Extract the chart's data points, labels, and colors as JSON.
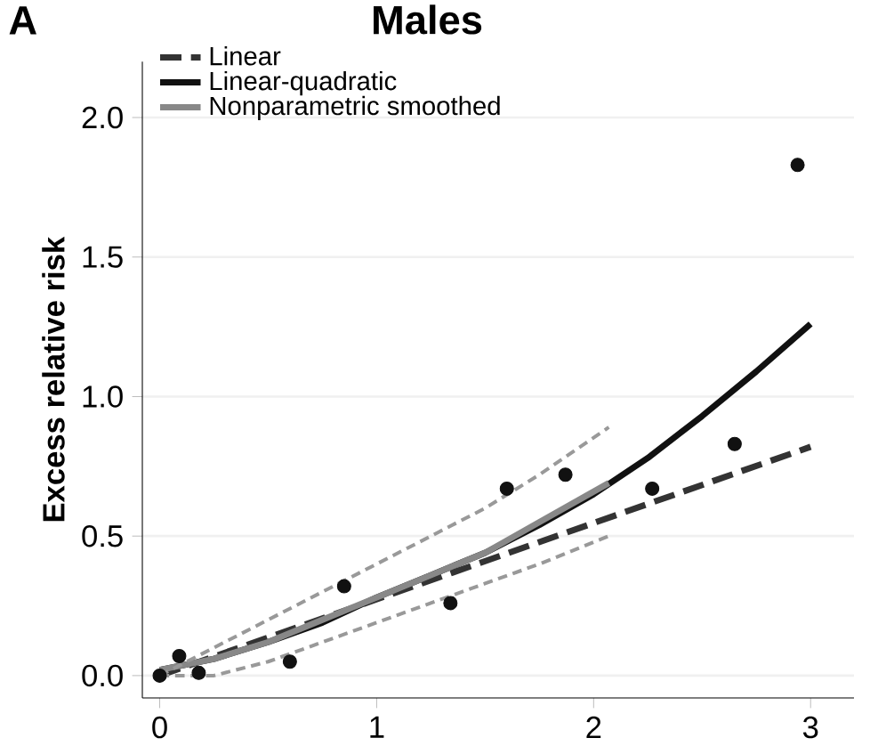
{
  "chart_data": {
    "type": "line",
    "title": "Males",
    "ylabel": "Excess relative risk",
    "annotations": [
      "A"
    ],
    "xlim": [
      -0.08,
      3.2
    ],
    "ylim": [
      -0.08,
      2.2
    ],
    "xticks": [
      0,
      1,
      2,
      3
    ],
    "yticks": [
      {
        "value": 0,
        "label": "0.0"
      },
      {
        "value": 0.5,
        "label": "0.5"
      },
      {
        "value": 1,
        "label": "1.0"
      },
      {
        "value": 1.5,
        "label": "1.5"
      },
      {
        "value": 2,
        "label": "2.0"
      }
    ],
    "grid": "y",
    "legend": "top left",
    "series": [
      {
        "name": "Linear",
        "color": "#333333",
        "line_style": "dashed",
        "x": [
          0,
          3
        ],
        "values": [
          0,
          0.82
        ]
      },
      {
        "name": "Linear-quadratic",
        "color": "#111111",
        "line_style": "solid",
        "x": [
          0,
          0.25,
          0.5,
          0.75,
          1,
          1.25,
          1.5,
          1.75,
          2,
          2.25,
          2.5,
          2.75,
          3
        ],
        "values": [
          0.02,
          0.06,
          0.12,
          0.19,
          0.28,
          0.36,
          0.44,
          0.54,
          0.65,
          0.78,
          0.93,
          1.09,
          1.26
        ]
      },
      {
        "name": "Nonparametric smoothed",
        "color": "#888888",
        "line_style": "solid",
        "x": [
          0,
          0.25,
          0.5,
          0.75,
          1,
          1.25,
          1.5,
          1.75,
          2.07
        ],
        "values": [
          0.02,
          0.06,
          0.12,
          0.2,
          0.28,
          0.36,
          0.44,
          0.55,
          0.69
        ]
      },
      {
        "color": "#999999",
        "line_style": "dashed",
        "x": [
          0,
          0.25,
          0.5,
          0.75,
          1,
          1.25,
          1.5,
          1.75,
          2.07
        ],
        "values": [
          0,
          0.1,
          0.2,
          0.3,
          0.4,
          0.5,
          0.6,
          0.72,
          0.89
        ]
      },
      {
        "color": "#999999",
        "line_style": "dashed",
        "x": [
          0,
          0.25,
          0.5,
          0.75,
          1,
          1.25,
          1.5,
          1.75,
          2.07
        ],
        "values": [
          0,
          0,
          0.05,
          0.12,
          0.19,
          0.26,
          0.33,
          0.4,
          0.5
        ]
      },
      {
        "type": "scatter",
        "color": "#111111",
        "marker": "circle",
        "x": [
          0,
          0.09,
          0.18,
          0.6,
          0.85,
          1.34,
          1.6,
          1.87,
          2.27,
          2.65,
          2.94
        ],
        "values": [
          0,
          0.07,
          0.01,
          0.05,
          0.32,
          0.26,
          0.67,
          0.72,
          0.67,
          0.83,
          1.83
        ]
      }
    ]
  }
}
